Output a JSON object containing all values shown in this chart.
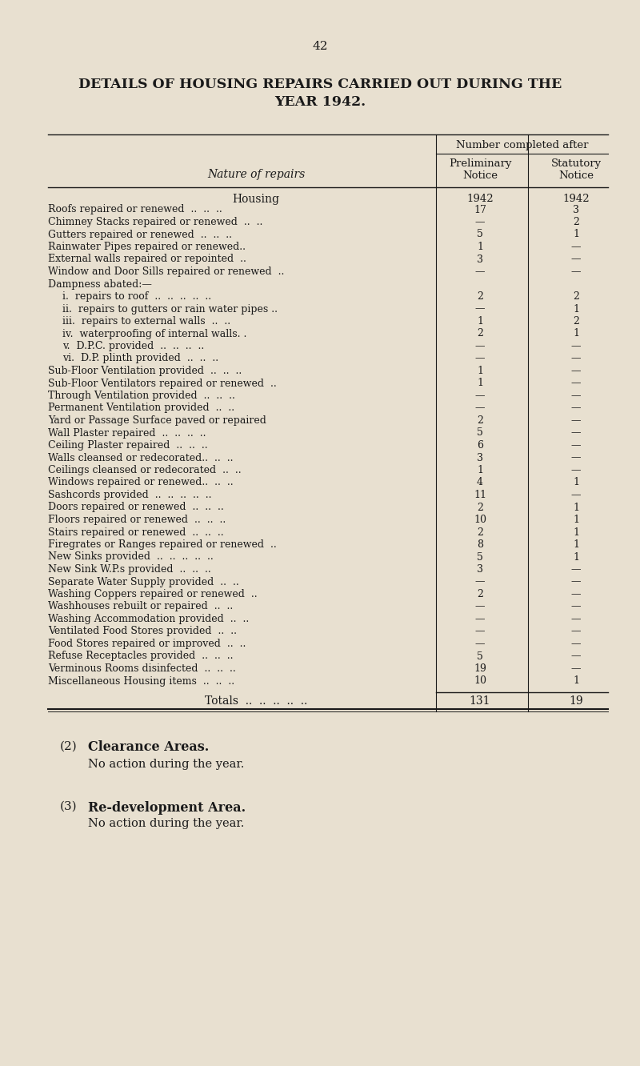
{
  "page_number": "42",
  "title_line1": "DETAILS OF HOUSING REPAIRS CARRIED OUT DURING THE",
  "title_line2": "YEAR 1942.",
  "bg_color": "#e8e0d0",
  "text_color": "#1a1a1a",
  "col_header_main": "Number completed after",
  "col_header1": "Preliminary\nNotice",
  "col_header2": "Statutory\nNotice",
  "nature_header": "Nature of repairs",
  "section_header": "Housing",
  "year_label": "1942",
  "rows": [
    {
      "label": "Roofs repaired or renewed  ..  ..  ..",
      "indent": 0,
      "v1": "17",
      "v2": "3"
    },
    {
      "label": "Chimney Stacks repaired or renewed  ..  ..",
      "indent": 0,
      "v1": "—",
      "v2": "2"
    },
    {
      "label": "Gutters repaired or renewed  ..  ..  ..",
      "indent": 0,
      "v1": "5",
      "v2": "1"
    },
    {
      "label": "Rainwater Pipes repaired or renewed..",
      "indent": 0,
      "v1": "1",
      "v2": "—"
    },
    {
      "label": "External walls repaired or repointed  ..",
      "indent": 0,
      "v1": "3",
      "v2": "—"
    },
    {
      "label": "Window and Door Sills repaired or renewed  ..",
      "indent": 0,
      "v1": "—",
      "v2": "—"
    },
    {
      "label": "Dampness abated:—",
      "indent": 0,
      "v1": "",
      "v2": ""
    },
    {
      "label": "i.  repairs to roof  ..  ..  ..  ..  ..",
      "indent": 1,
      "v1": "2",
      "v2": "2"
    },
    {
      "label": "ii.  repairs to gutters or rain water pipes ..",
      "indent": 1,
      "v1": "—",
      "v2": "1"
    },
    {
      "label": "iii.  repairs to external walls  ..  ..",
      "indent": 1,
      "v1": "1",
      "v2": "2"
    },
    {
      "label": "iv.  waterproofing of internal walls. .",
      "indent": 1,
      "v1": "2",
      "v2": "1"
    },
    {
      "label": "v.  D.P.C. provided  ..  ..  ..  ..",
      "indent": 1,
      "v1": "—",
      "v2": "—"
    },
    {
      "label": "vi.  D.P. plinth provided  ..  ..  ..",
      "indent": 1,
      "v1": "—",
      "v2": "—"
    },
    {
      "label": "Sub-Floor Ventilation provided  ..  ..  ..",
      "indent": 0,
      "v1": "1",
      "v2": "—"
    },
    {
      "label": "Sub-Floor Ventilators repaired or renewed  ..",
      "indent": 0,
      "v1": "1",
      "v2": "—"
    },
    {
      "label": "Through Ventilation provided  ..  ..  ..",
      "indent": 0,
      "v1": "—",
      "v2": "—"
    },
    {
      "label": "Permanent Ventilation provided  ..  ..",
      "indent": 0,
      "v1": "—",
      "v2": "—"
    },
    {
      "label": "Yard or Passage Surface paved or repaired",
      "indent": 0,
      "v1": "2",
      "v2": "—"
    },
    {
      "label": "Wall Plaster repaired  ..  ..  ..  ..",
      "indent": 0,
      "v1": "5",
      "v2": "—"
    },
    {
      "label": "Ceiling Plaster repaired  ..  ..  ..",
      "indent": 0,
      "v1": "6",
      "v2": "—"
    },
    {
      "label": "Walls cleansed or redecorated..  ..  ..",
      "indent": 0,
      "v1": "3",
      "v2": "—"
    },
    {
      "label": "Ceilings cleansed or redecorated  ..  ..",
      "indent": 0,
      "v1": "1",
      "v2": "—"
    },
    {
      "label": "Windows repaired or renewed..  ..  ..",
      "indent": 0,
      "v1": "4",
      "v2": "1"
    },
    {
      "label": "Sashcords provided  ..  ..  ..  ..  ..",
      "indent": 0,
      "v1": "11",
      "v2": "—"
    },
    {
      "label": "Doors repaired or renewed  ..  ..  ..",
      "indent": 0,
      "v1": "2",
      "v2": "1"
    },
    {
      "label": "Floors repaired or renewed  ..  ..  ..",
      "indent": 0,
      "v1": "10",
      "v2": "1"
    },
    {
      "label": "Stairs repaired or renewed  ..  ..  ..",
      "indent": 0,
      "v1": "2",
      "v2": "1"
    },
    {
      "label": "Firegrates or Ranges repaired or renewed  ..",
      "indent": 0,
      "v1": "8",
      "v2": "1"
    },
    {
      "label": "New Sinks provided  ..  ..  ..  ..  ..",
      "indent": 0,
      "v1": "5",
      "v2": "1"
    },
    {
      "label": "New Sink W.P.s provided  ..  ..  ..",
      "indent": 0,
      "v1": "3",
      "v2": "—"
    },
    {
      "label": "Separate Water Supply provided  ..  ..",
      "indent": 0,
      "v1": "—",
      "v2": "—"
    },
    {
      "label": "Washing Coppers repaired or renewed  ..",
      "indent": 0,
      "v1": "2",
      "v2": "—"
    },
    {
      "label": "Washhouses rebuilt or repaired  ..  ..",
      "indent": 0,
      "v1": "—",
      "v2": "—"
    },
    {
      "label": "Washing Accommodation provided  ..  ..",
      "indent": 0,
      "v1": "—",
      "v2": "—"
    },
    {
      "label": "Ventilated Food Stores provided  ..  ..",
      "indent": 0,
      "v1": "—",
      "v2": "—"
    },
    {
      "label": "Food Stores repaired or improved  ..  ..",
      "indent": 0,
      "v1": "—",
      "v2": "—"
    },
    {
      "label": "Refuse Receptacles provided  ..  ..  ..",
      "indent": 0,
      "v1": "5",
      "v2": "—"
    },
    {
      "label": "Verminous Rooms disinfected  ..  ..  ..",
      "indent": 0,
      "v1": "19",
      "v2": "—"
    },
    {
      "label": "Miscellaneous Housing items  ..  ..  ..",
      "indent": 0,
      "v1": "10",
      "v2": "1"
    }
  ],
  "totals_label": "Totals  ..  ..  ..  ..  ..",
  "totals_v1": "131",
  "totals_v2": "19",
  "footer_items": [
    {
      "num": "(2)",
      "heading": "Clearance Areas.",
      "body": "No action during the year."
    },
    {
      "num": "(3)",
      "heading": "Re-development Area.",
      "body": "No action during the year."
    }
  ]
}
